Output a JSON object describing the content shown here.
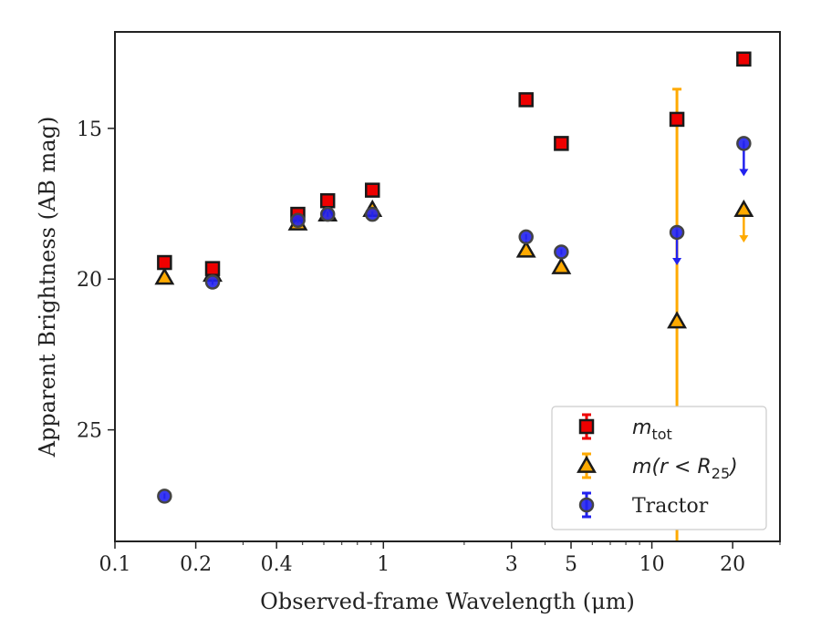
{
  "chart_data": {
    "type": "scatter",
    "title": "",
    "xlabel": "Observed-frame Wavelength (μm)",
    "ylabel": "Apparent Brightness (AB mag)",
    "xscale": "log",
    "xlim": [
      0.1,
      30
    ],
    "ylim": [
      28.7,
      11.8
    ],
    "y_inverted": true,
    "x_ticks": [
      {
        "value": 0.1,
        "label": "0.1"
      },
      {
        "value": 0.2,
        "label": "0.2"
      },
      {
        "value": 0.4,
        "label": "0.4"
      },
      {
        "value": 1,
        "label": "1"
      },
      {
        "value": 3,
        "label": "3"
      },
      {
        "value": 5,
        "label": "5"
      },
      {
        "value": 10,
        "label": "10"
      },
      {
        "value": 20,
        "label": "20"
      }
    ],
    "y_ticks": [
      {
        "value": 15,
        "label": "15"
      },
      {
        "value": 20,
        "label": "20"
      },
      {
        "value": 25,
        "label": "25"
      }
    ],
    "grid": false,
    "legend_position": "bottom-right",
    "series": [
      {
        "key": "mtot",
        "legend_label": {
          "base": "m",
          "sub": "tot"
        },
        "marker": "square",
        "fill": "#ee0000",
        "edge": "#1a1a1a",
        "error_color": "#ee0000",
        "points": [
          {
            "x": 0.153,
            "y": 19.45
          },
          {
            "x": 0.231,
            "y": 19.65
          },
          {
            "x": 0.48,
            "y": 17.85
          },
          {
            "x": 0.62,
            "y": 17.4
          },
          {
            "x": 0.91,
            "y": 17.05
          },
          {
            "x": 3.4,
            "y": 14.05
          },
          {
            "x": 4.6,
            "y": 15.5
          },
          {
            "x": 12.4,
            "y": 14.7
          },
          {
            "x": 22.0,
            "y": 12.7
          }
        ]
      },
      {
        "key": "mr25",
        "legend_label": {
          "base": "m",
          "paren": "(r < R",
          "sub": "25",
          "close": ")"
        },
        "marker": "triangle",
        "fill": "#ffaa00",
        "edge": "#1a1a1a",
        "error_color": "#ffaa00",
        "points": [
          {
            "x": 0.153,
            "y": 19.95
          },
          {
            "x": 0.231,
            "y": 19.85
          },
          {
            "x": 0.48,
            "y": 18.15
          },
          {
            "x": 0.62,
            "y": 17.85
          },
          {
            "x": 0.91,
            "y": 17.7
          },
          {
            "x": 3.4,
            "y": 19.05
          },
          {
            "x": 4.6,
            "y": 19.6
          },
          {
            "x": 12.4,
            "y": 21.4,
            "err_low": 13.7,
            "err_high": 28.7
          },
          {
            "x": 22.0,
            "y": 17.7,
            "upper_limit": true
          }
        ]
      },
      {
        "key": "tractor",
        "name": "Tractor",
        "marker": "circle",
        "fill": "#2222ee",
        "edge": "#444444",
        "error_color": "#2222ee",
        "points": [
          {
            "x": 0.153,
            "y": 27.2
          },
          {
            "x": 0.231,
            "y": 20.1
          },
          {
            "x": 0.48,
            "y": 18.05
          },
          {
            "x": 0.62,
            "y": 17.85
          },
          {
            "x": 0.91,
            "y": 17.85
          },
          {
            "x": 3.4,
            "y": 18.6
          },
          {
            "x": 4.6,
            "y": 19.1
          },
          {
            "x": 12.4,
            "y": 18.45,
            "upper_limit": true
          },
          {
            "x": 22.0,
            "y": 15.5,
            "upper_limit": true
          }
        ]
      }
    ]
  }
}
